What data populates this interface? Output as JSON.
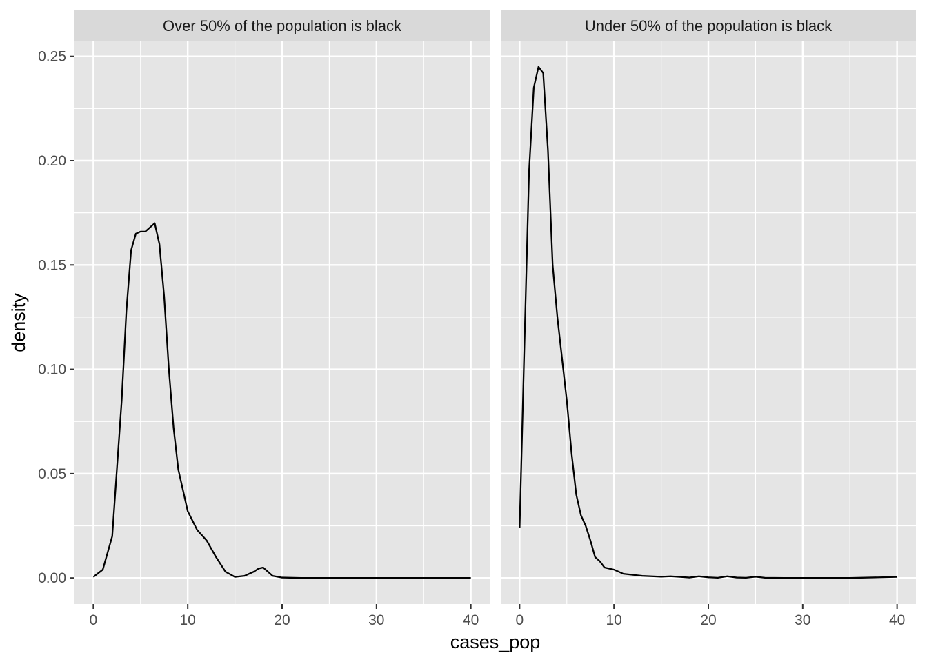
{
  "chart_data": {
    "type": "line",
    "chart_kind": "faceted density plot",
    "xlabel": "cases_pop",
    "ylabel": "density",
    "xlim": [
      -2,
      42
    ],
    "ylim": [
      -0.0125,
      0.2575
    ],
    "x_ticks": [
      0,
      10,
      20,
      30,
      40
    ],
    "x_minor_ticks": [
      5,
      15,
      25,
      35
    ],
    "y_ticks": [
      0.0,
      0.05,
      0.1,
      0.15,
      0.2,
      0.25
    ],
    "y_tick_labels": [
      "0.00",
      "0.05",
      "0.10",
      "0.15",
      "0.20",
      "0.25"
    ],
    "y_minor_ticks": [
      0.025,
      0.075,
      0.125,
      0.175,
      0.225
    ],
    "grid": true,
    "legend": "none",
    "colors": {
      "panel_background": "#e5e5e5",
      "grid": "#ffffff",
      "strip_background": "#d9d9d9",
      "line": "#000000"
    },
    "facets": [
      {
        "label": "Over 50% of the population is black",
        "x": [
          0,
          1,
          2,
          3,
          3.5,
          4,
          4.5,
          5,
          5.5,
          6,
          6.5,
          7,
          7.5,
          8,
          8.5,
          9,
          10,
          11,
          12,
          13,
          14,
          15,
          16,
          17,
          17.5,
          18,
          18.5,
          19,
          20,
          22,
          25,
          30,
          35,
          40
        ],
        "y": [
          0.0005,
          0.004,
          0.02,
          0.085,
          0.128,
          0.157,
          0.165,
          0.166,
          0.166,
          0.168,
          0.17,
          0.16,
          0.135,
          0.1,
          0.072,
          0.052,
          0.032,
          0.023,
          0.018,
          0.01,
          0.003,
          0.0005,
          0.001,
          0.003,
          0.0045,
          0.005,
          0.003,
          0.001,
          0.0002,
          0.0,
          0.0,
          0.0,
          0.0,
          0.0
        ]
      },
      {
        "label": "Under 50% of the population is black",
        "x": [
          0,
          0.5,
          1,
          1.5,
          2,
          2.5,
          3,
          3.5,
          4,
          4.5,
          5,
          5.5,
          6,
          6.5,
          7,
          7.5,
          8,
          8.5,
          9,
          10,
          11,
          12,
          13,
          14,
          15,
          16,
          17,
          18,
          19,
          20,
          21,
          22,
          23,
          24,
          25,
          26,
          28,
          30,
          35,
          40
        ],
        "y": [
          0.024,
          0.11,
          0.195,
          0.235,
          0.245,
          0.242,
          0.205,
          0.15,
          0.125,
          0.105,
          0.085,
          0.06,
          0.04,
          0.03,
          0.025,
          0.018,
          0.01,
          0.008,
          0.005,
          0.004,
          0.002,
          0.0015,
          0.001,
          0.0008,
          0.0006,
          0.0008,
          0.0005,
          0.0002,
          0.0008,
          0.0003,
          0.0001,
          0.0008,
          0.0002,
          0.0001,
          0.0006,
          0.0001,
          0.0,
          0.0,
          0.0,
          0.0005
        ]
      }
    ]
  }
}
